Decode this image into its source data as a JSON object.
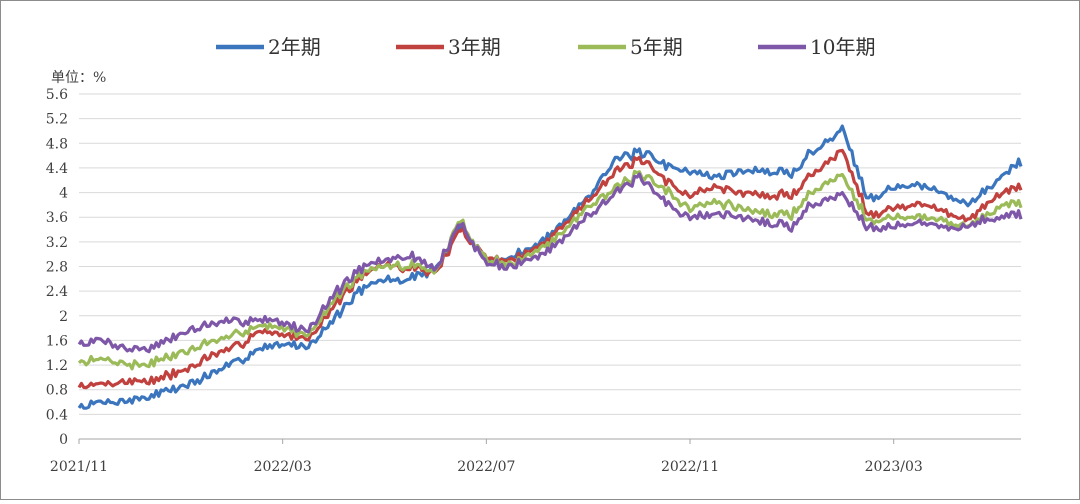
{
  "chart_data": {
    "type": "line",
    "title": "",
    "unit_label": "单位：%",
    "xlabel": "",
    "ylabel": "",
    "ylim": [
      0,
      5.6
    ],
    "y_ticks": [
      "0",
      "0.4",
      "0.8",
      "1.2",
      "1.6",
      "2",
      "2.4",
      "2.8",
      "3.2",
      "3.6",
      "4",
      "4.4",
      "4.8",
      "5.2",
      "5.6"
    ],
    "x_ticks": [
      "2021/11",
      "2022/03",
      "2022/07",
      "2022/11",
      "2023/03"
    ],
    "grid": "horizontal",
    "legend_position": "top",
    "x_months": [
      0,
      0.5,
      1,
      1.5,
      2,
      2.5,
      3,
      3.5,
      4,
      4.5,
      5,
      5.5,
      6,
      6.3,
      6.6,
      7,
      7.5,
      8,
      8.5,
      9,
      9.5,
      10,
      10.5,
      11,
      11.5,
      12,
      12.5,
      13,
      13.5,
      14,
      14.3,
      14.6,
      15,
      15.5,
      16,
      16.5,
      17,
      17.5,
      18,
      18.5
    ],
    "series": [
      {
        "name": "2年期",
        "color": "#3a75be",
        "values": [
          0.52,
          0.62,
          0.62,
          0.72,
          0.85,
          1.0,
          1.2,
          1.45,
          1.55,
          1.5,
          1.95,
          2.4,
          2.6,
          2.55,
          2.65,
          2.75,
          3.45,
          2.9,
          2.95,
          3.15,
          3.5,
          3.95,
          4.5,
          4.65,
          4.45,
          4.35,
          4.25,
          4.35,
          4.35,
          4.3,
          4.6,
          4.75,
          5.05,
          3.9,
          4.1,
          4.1,
          4.0,
          3.8,
          4.2,
          4.5
        ]
      },
      {
        "name": "3年期",
        "color": "#c0413e",
        "values": [
          0.85,
          0.9,
          0.95,
          0.95,
          1.1,
          1.3,
          1.45,
          1.75,
          1.7,
          1.62,
          2.15,
          2.6,
          2.85,
          2.75,
          2.8,
          2.7,
          3.4,
          2.95,
          2.9,
          3.1,
          3.45,
          3.9,
          4.3,
          4.55,
          4.2,
          3.95,
          4.1,
          4.0,
          3.95,
          3.95,
          4.25,
          4.4,
          4.7,
          3.65,
          3.75,
          3.8,
          3.7,
          3.55,
          3.95,
          4.1
        ]
      },
      {
        "name": "5年期",
        "color": "#9bbb59",
        "values": [
          1.25,
          1.3,
          1.2,
          1.25,
          1.4,
          1.55,
          1.65,
          1.85,
          1.8,
          1.7,
          2.25,
          2.65,
          2.8,
          2.8,
          2.85,
          2.7,
          3.55,
          2.9,
          2.85,
          3.05,
          3.35,
          3.8,
          4.05,
          4.3,
          4.05,
          3.75,
          3.85,
          3.75,
          3.65,
          3.65,
          3.95,
          4.1,
          4.3,
          3.55,
          3.6,
          3.6,
          3.55,
          3.45,
          3.75,
          3.85
        ]
      },
      {
        "name": "10年期",
        "color": "#7e57a8",
        "values": [
          1.55,
          1.6,
          1.45,
          1.5,
          1.7,
          1.85,
          1.9,
          1.95,
          1.9,
          1.75,
          2.35,
          2.75,
          2.9,
          2.95,
          2.95,
          2.75,
          3.5,
          2.85,
          2.8,
          2.95,
          3.25,
          3.65,
          3.95,
          4.25,
          3.85,
          3.6,
          3.65,
          3.6,
          3.5,
          3.45,
          3.75,
          3.85,
          4.0,
          3.45,
          3.45,
          3.5,
          3.45,
          3.45,
          3.6,
          3.65
        ]
      }
    ]
  }
}
